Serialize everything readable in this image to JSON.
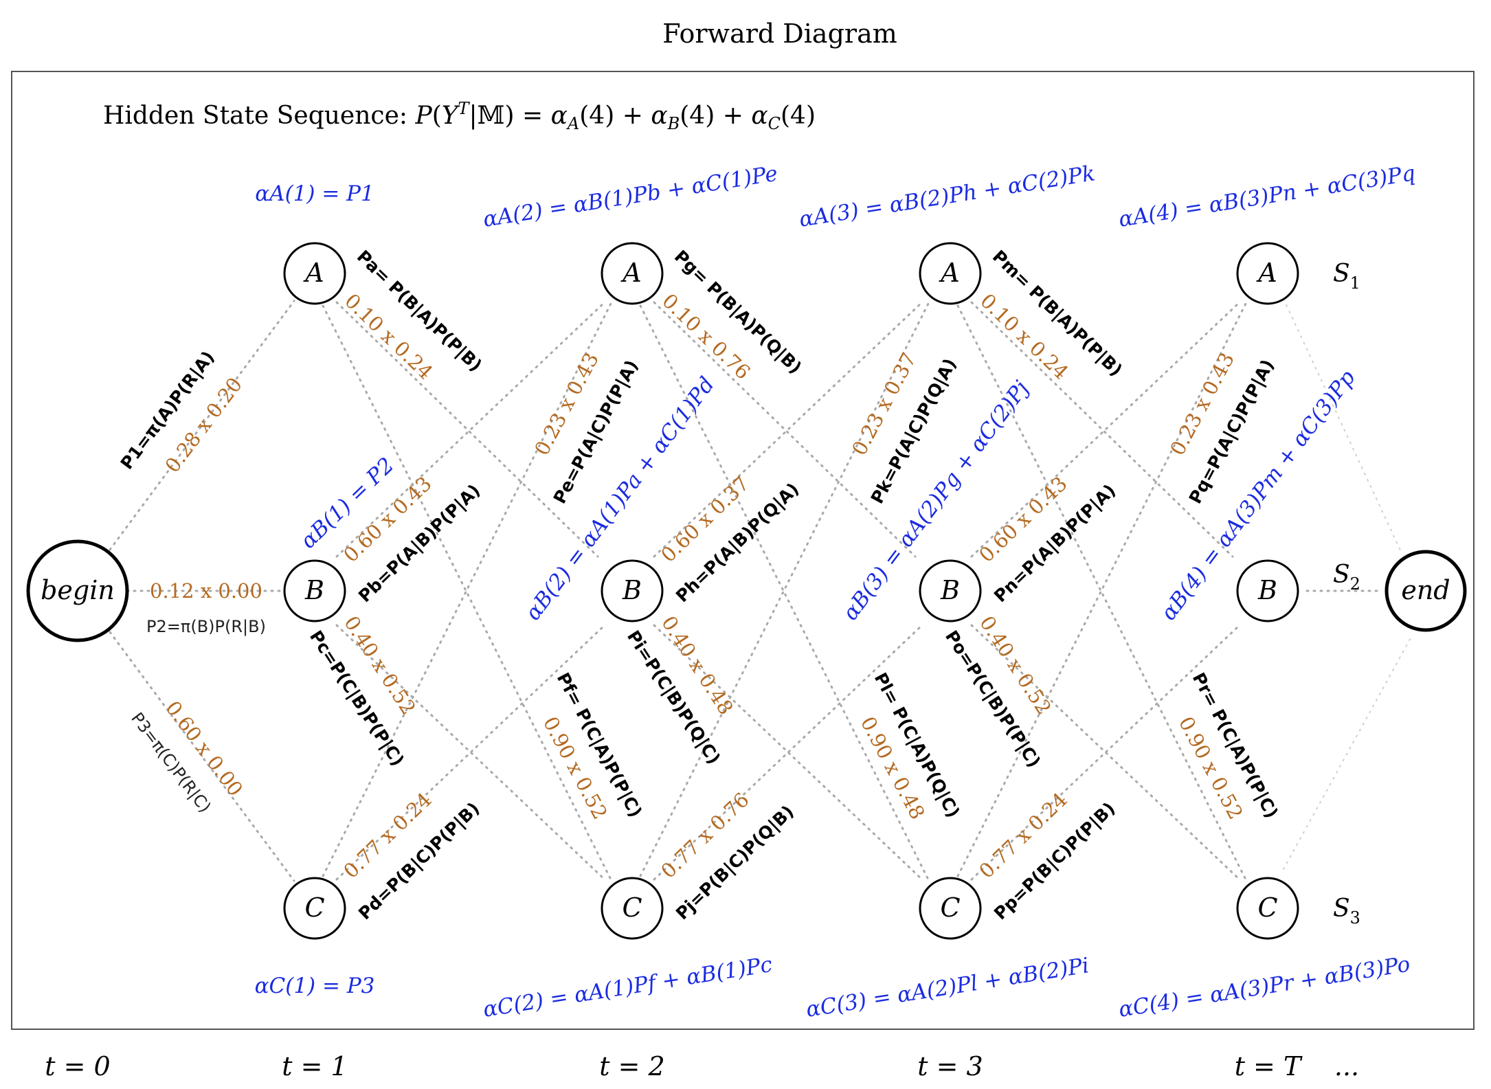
{
  "title": "Forward Diagram",
  "header": "Hidden State Sequence: P(Y^T|𝕄) = α_A(4) + α_B(4) + α_C(4)",
  "nodes": {
    "begin": "begin",
    "end": "end",
    "A": "A",
    "B": "B",
    "C": "C"
  },
  "state_labels": [
    "S1",
    "S2",
    "S3"
  ],
  "time_labels": [
    "t = 0",
    "t = 1",
    "t = 2",
    "t = 3",
    "t = T",
    "..."
  ],
  "initial": {
    "p1": "P1=π(A)P(R|A)",
    "p1_num": "0.28 x 0.20",
    "p2": "P2=π(B)P(R|B)",
    "p2_num": "0.12 x 0.00",
    "p3": "P3=π(C)P(R|C)",
    "p3_num": "0.60 x 0.00"
  },
  "transitions": [
    {
      "id": "a",
      "label": "Pa= P(B|A)P(P|B)",
      "num": "0.10 x 0.24"
    },
    {
      "id": "b",
      "label": "Pb=P(A|B)P(P|A)",
      "num": "0.60 x 0.43"
    },
    {
      "id": "c",
      "label": "Pc=P(C|B)P(P|C)",
      "num": "0.40 x 0.52"
    },
    {
      "id": "d",
      "label": "Pd=P(B|C)P(P|B)",
      "num": "0.77 x 0.24"
    },
    {
      "id": "e",
      "label": "Pe=P(A|C)P(P|A)",
      "num": "0.23 x 0.43"
    },
    {
      "id": "f",
      "label": "Pf= P(C|A)P(P|C)",
      "num": "0.90 x 0.52"
    },
    {
      "id": "g",
      "label": "Pg= P(B|A)P(Q|B)",
      "num": "0.10 x 0.76"
    },
    {
      "id": "h",
      "label": "Ph=P(A|B)P(Q|A)",
      "num": "0.60 x 0.37"
    },
    {
      "id": "i",
      "label": "Pi=P(C|B)P(Q|C)",
      "num": "0.40 x 0.48"
    },
    {
      "id": "j",
      "label": "Pj=P(B|C)P(Q|B)",
      "num": "0.77 x 0.76"
    },
    {
      "id": "k",
      "label": "Pk=P(A|C)P(Q|A)",
      "num": "0.23 x 0.37"
    },
    {
      "id": "l",
      "label": "Pl= P(C|A)P(Q|C)",
      "num": "0.90 x 0.48"
    },
    {
      "id": "m",
      "label": "Pm= P(B|A)P(P|B)",
      "num": "0.10 x 0.24"
    },
    {
      "id": "n",
      "label": "Pn=P(A|B)P(P|A)",
      "num": "0.60 x 0.43"
    },
    {
      "id": "o",
      "label": "Po=P(C|B)P(P|C)",
      "num": "0.40 x 0.52"
    },
    {
      "id": "p",
      "label": "Pp=P(B|C)P(P|B)",
      "num": "0.77 x 0.24"
    },
    {
      "id": "q",
      "label": "Pq=P(A|C)P(P|A)",
      "num": "0.23 x 0.43"
    },
    {
      "id": "r",
      "label": "Pr= P(C|A)P(P|C)",
      "num": "0.90 x 0.52"
    }
  ],
  "alphas": {
    "A1": "αA(1) = P1",
    "B1": "αB(1) = P2",
    "C1": "αC(1) = P3",
    "A2": "αA(2) = αB(1)Pb + αC(1)Pe",
    "B2": "αB(2) = αA(1)Pa + αC(1)Pd",
    "C2": "αC(2) = αA(1)Pf + αB(1)Pc",
    "A3": "αA(3) = αB(2)Ph + αC(2)Pk",
    "B3": "αB(3) = αA(2)Pg + αC(2)Pj",
    "C3": "αC(3) = αA(2)Pl + αB(2)Pi",
    "A4": "αA(4) = αB(3)Pn + αC(3)Pq",
    "B4": "αB(4) = αA(3)Pm + αC(3)Pp",
    "C4": "αC(4) = αA(3)Pr + αB(3)Po"
  }
}
